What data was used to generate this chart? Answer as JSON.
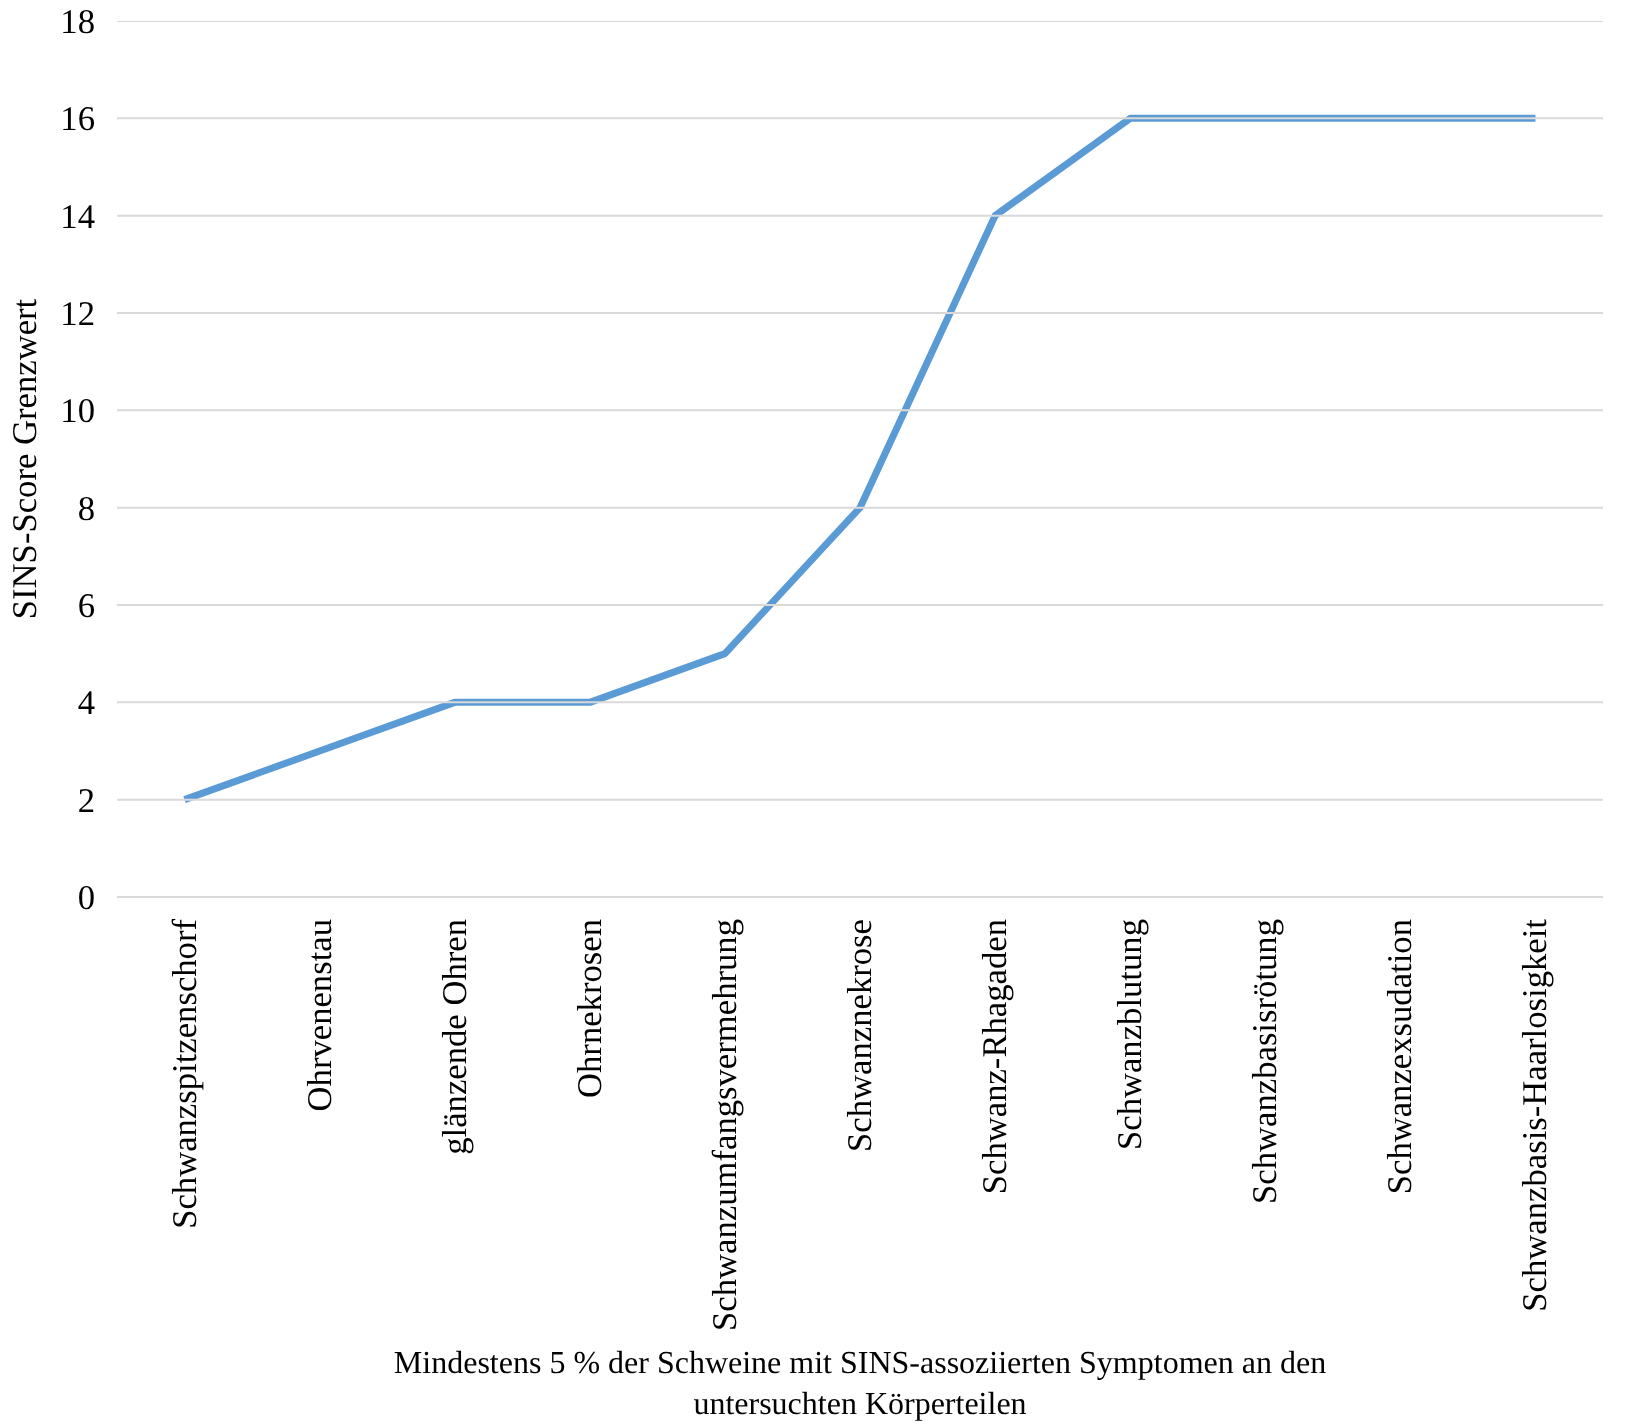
{
  "chart_data": {
    "type": "line",
    "categories": [
      "Schwanzspitzenschorf",
      "Ohrvenenstau",
      "glänzende Ohren",
      "Ohrnekrosen",
      "Schwanzumfangsvermehrung",
      "Schwanznekrose",
      "Schwanz-Rhagaden",
      "Schwanzblutung",
      "Schwanzbasisrötung",
      "Schwanzexsudation",
      "Schwanzbasis-Haarlosigkeit"
    ],
    "series": [
      {
        "color": "#5b9bd5",
        "values": [
          2,
          3,
          4,
          4,
          5,
          8,
          14,
          16,
          16,
          16,
          16
        ]
      }
    ],
    "xlabel": "Mindestens 5 % der Schweine mit SINS-assoziierten Symptomen an den untersuchten Körperteilen",
    "ylabel": "SINS-Score Grenzwert",
    "ylim": [
      0,
      18
    ],
    "yticks": [
      0,
      2,
      4,
      6,
      8,
      10,
      12,
      14,
      16,
      18
    ],
    "grid": "y",
    "marker": "none",
    "line_style": "solid"
  }
}
